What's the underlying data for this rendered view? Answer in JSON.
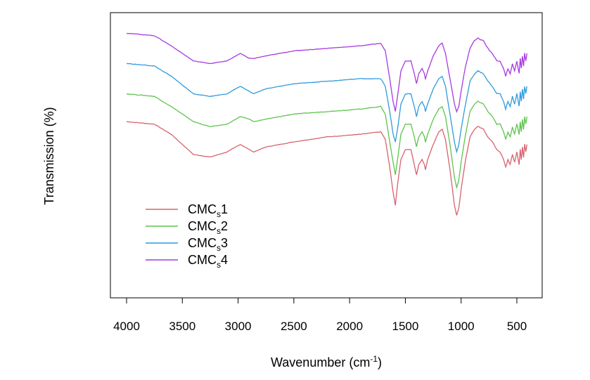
{
  "chart_data": {
    "type": "line",
    "xlabel_main": "Wavenumber (cm",
    "xlabel_sup": "-1",
    "xlabel_tail": ")",
    "ylabel": "Transmission (%)",
    "xlim": [
      4000,
      400
    ],
    "x_reversed": true,
    "y_ticks_shown": false,
    "grid": false,
    "legend_position": "bottom-left",
    "xticks": [
      4000,
      3500,
      3000,
      2500,
      2000,
      1500,
      1000,
      500
    ],
    "ylim": [
      0,
      100
    ],
    "series": [
      {
        "label_main": "CMC",
        "label_sub": "s",
        "label_tail": "1",
        "color": "#d6636f",
        "points": [
          [
            4000,
            63
          ],
          [
            3750,
            62
          ],
          [
            3600,
            58
          ],
          [
            3400,
            50
          ],
          [
            3250,
            49
          ],
          [
            3100,
            51
          ],
          [
            2980,
            54
          ],
          [
            2900,
            52
          ],
          [
            2860,
            51
          ],
          [
            2750,
            53
          ],
          [
            2500,
            55
          ],
          [
            2200,
            57
          ],
          [
            1900,
            58
          ],
          [
            1720,
            59
          ],
          [
            1680,
            56
          ],
          [
            1640,
            45
          ],
          [
            1610,
            35
          ],
          [
            1590,
            30
          ],
          [
            1570,
            38
          ],
          [
            1540,
            48
          ],
          [
            1500,
            52
          ],
          [
            1450,
            52
          ],
          [
            1420,
            46
          ],
          [
            1400,
            42
          ],
          [
            1380,
            46
          ],
          [
            1350,
            48
          ],
          [
            1330,
            46
          ],
          [
            1320,
            44
          ],
          [
            1300,
            48
          ],
          [
            1250,
            54
          ],
          [
            1200,
            59
          ],
          [
            1170,
            60
          ],
          [
            1140,
            56
          ],
          [
            1100,
            44
          ],
          [
            1060,
            30
          ],
          [
            1040,
            26
          ],
          [
            1020,
            29
          ],
          [
            1000,
            36
          ],
          [
            960,
            48
          ],
          [
            920,
            57
          ],
          [
            880,
            60
          ],
          [
            850,
            61
          ],
          [
            800,
            60
          ],
          [
            760,
            57
          ],
          [
            720,
            55
          ],
          [
            680,
            52
          ],
          [
            650,
            51
          ],
          [
            620,
            48
          ],
          [
            600,
            45
          ],
          [
            580,
            48
          ],
          [
            560,
            46
          ],
          [
            540,
            50
          ],
          [
            520,
            47
          ],
          [
            500,
            51
          ],
          [
            480,
            46
          ],
          [
            470,
            52
          ],
          [
            460,
            48
          ],
          [
            450,
            53
          ],
          [
            440,
            49
          ],
          [
            430,
            54
          ],
          [
            420,
            51
          ],
          [
            410,
            54
          ]
        ]
      },
      {
        "label_main": "CMC",
        "label_sub": "s",
        "label_tail": "2",
        "color": "#5ec44e",
        "points": [
          [
            4000,
            74
          ],
          [
            3750,
            73
          ],
          [
            3600,
            69
          ],
          [
            3400,
            63
          ],
          [
            3250,
            61
          ],
          [
            3100,
            62
          ],
          [
            2980,
            65
          ],
          [
            2900,
            64
          ],
          [
            2860,
            63
          ],
          [
            2750,
            64
          ],
          [
            2500,
            66
          ],
          [
            2200,
            67
          ],
          [
            1900,
            68
          ],
          [
            1720,
            69
          ],
          [
            1680,
            66
          ],
          [
            1640,
            55
          ],
          [
            1610,
            47
          ],
          [
            1590,
            42
          ],
          [
            1570,
            48
          ],
          [
            1540,
            58
          ],
          [
            1500,
            62
          ],
          [
            1450,
            62
          ],
          [
            1420,
            57
          ],
          [
            1400,
            53
          ],
          [
            1380,
            57
          ],
          [
            1350,
            59
          ],
          [
            1330,
            57
          ],
          [
            1320,
            55
          ],
          [
            1300,
            58
          ],
          [
            1250,
            64
          ],
          [
            1200,
            68
          ],
          [
            1170,
            69
          ],
          [
            1140,
            65
          ],
          [
            1100,
            54
          ],
          [
            1060,
            41
          ],
          [
            1040,
            37
          ],
          [
            1020,
            40
          ],
          [
            1000,
            47
          ],
          [
            960,
            58
          ],
          [
            920,
            67
          ],
          [
            880,
            70
          ],
          [
            850,
            71
          ],
          [
            800,
            70
          ],
          [
            760,
            67
          ],
          [
            720,
            65
          ],
          [
            680,
            62
          ],
          [
            650,
            62
          ],
          [
            620,
            59
          ],
          [
            600,
            56
          ],
          [
            580,
            59
          ],
          [
            560,
            57
          ],
          [
            540,
            61
          ],
          [
            520,
            58
          ],
          [
            500,
            62
          ],
          [
            480,
            58
          ],
          [
            470,
            63
          ],
          [
            460,
            59
          ],
          [
            450,
            64
          ],
          [
            440,
            60
          ],
          [
            430,
            65
          ],
          [
            420,
            62
          ],
          [
            410,
            65
          ]
        ]
      },
      {
        "label_main": "CMC",
        "label_sub": "s",
        "label_tail": "3",
        "color": "#2f9bdc",
        "points": [
          [
            4000,
            86
          ],
          [
            3750,
            85
          ],
          [
            3600,
            81
          ],
          [
            3400,
            74
          ],
          [
            3250,
            73
          ],
          [
            3100,
            74
          ],
          [
            2980,
            77
          ],
          [
            2900,
            75
          ],
          [
            2860,
            74
          ],
          [
            2750,
            76
          ],
          [
            2500,
            78
          ],
          [
            2200,
            79
          ],
          [
            1900,
            80
          ],
          [
            1720,
            80
          ],
          [
            1680,
            77
          ],
          [
            1640,
            67
          ],
          [
            1610,
            58
          ],
          [
            1590,
            55
          ],
          [
            1570,
            60
          ],
          [
            1540,
            70
          ],
          [
            1500,
            74
          ],
          [
            1450,
            74
          ],
          [
            1420,
            69
          ],
          [
            1400,
            65
          ],
          [
            1380,
            69
          ],
          [
            1350,
            71
          ],
          [
            1330,
            69
          ],
          [
            1320,
            67
          ],
          [
            1300,
            70
          ],
          [
            1250,
            76
          ],
          [
            1200,
            80
          ],
          [
            1170,
            81
          ],
          [
            1140,
            77
          ],
          [
            1100,
            66
          ],
          [
            1060,
            55
          ],
          [
            1040,
            51
          ],
          [
            1020,
            54
          ],
          [
            1000,
            60
          ],
          [
            960,
            70
          ],
          [
            920,
            79
          ],
          [
            880,
            82
          ],
          [
            850,
            83
          ],
          [
            800,
            82
          ],
          [
            760,
            79
          ],
          [
            720,
            77
          ],
          [
            680,
            74
          ],
          [
            650,
            74
          ],
          [
            620,
            71
          ],
          [
            600,
            68
          ],
          [
            580,
            71
          ],
          [
            560,
            69
          ],
          [
            540,
            73
          ],
          [
            520,
            70
          ],
          [
            500,
            74
          ],
          [
            480,
            69
          ],
          [
            470,
            75
          ],
          [
            460,
            71
          ],
          [
            450,
            76
          ],
          [
            440,
            72
          ],
          [
            430,
            77
          ],
          [
            420,
            74
          ],
          [
            410,
            77
          ]
        ]
      },
      {
        "label_main": "CMC",
        "label_sub": "s",
        "label_tail": "4",
        "color": "#a73ae0",
        "points": [
          [
            4000,
            98
          ],
          [
            3750,
            97
          ],
          [
            3600,
            93
          ],
          [
            3400,
            87
          ],
          [
            3250,
            86
          ],
          [
            3100,
            87
          ],
          [
            2980,
            90
          ],
          [
            2900,
            88
          ],
          [
            2860,
            88
          ],
          [
            2750,
            89
          ],
          [
            2500,
            91
          ],
          [
            2200,
            92
          ],
          [
            1900,
            93
          ],
          [
            1720,
            94
          ],
          [
            1680,
            91
          ],
          [
            1640,
            80
          ],
          [
            1610,
            71
          ],
          [
            1590,
            67
          ],
          [
            1570,
            73
          ],
          [
            1540,
            83
          ],
          [
            1500,
            87
          ],
          [
            1450,
            87
          ],
          [
            1420,
            82
          ],
          [
            1400,
            78
          ],
          [
            1380,
            82
          ],
          [
            1350,
            84
          ],
          [
            1330,
            82
          ],
          [
            1320,
            80
          ],
          [
            1300,
            83
          ],
          [
            1250,
            89
          ],
          [
            1200,
            93
          ],
          [
            1170,
            94
          ],
          [
            1140,
            90
          ],
          [
            1100,
            80
          ],
          [
            1060,
            70
          ],
          [
            1040,
            67
          ],
          [
            1020,
            69
          ],
          [
            1000,
            75
          ],
          [
            960,
            85
          ],
          [
            920,
            92
          ],
          [
            880,
            95
          ],
          [
            850,
            96
          ],
          [
            800,
            95
          ],
          [
            760,
            92
          ],
          [
            720,
            90
          ],
          [
            680,
            87
          ],
          [
            650,
            87
          ],
          [
            620,
            84
          ],
          [
            600,
            81
          ],
          [
            580,
            84
          ],
          [
            560,
            82
          ],
          [
            540,
            86
          ],
          [
            520,
            83
          ],
          [
            500,
            87
          ],
          [
            480,
            82
          ],
          [
            470,
            88
          ],
          [
            460,
            84
          ],
          [
            450,
            89
          ],
          [
            440,
            85
          ],
          [
            430,
            90
          ],
          [
            420,
            87
          ],
          [
            410,
            90
          ]
        ]
      }
    ]
  }
}
